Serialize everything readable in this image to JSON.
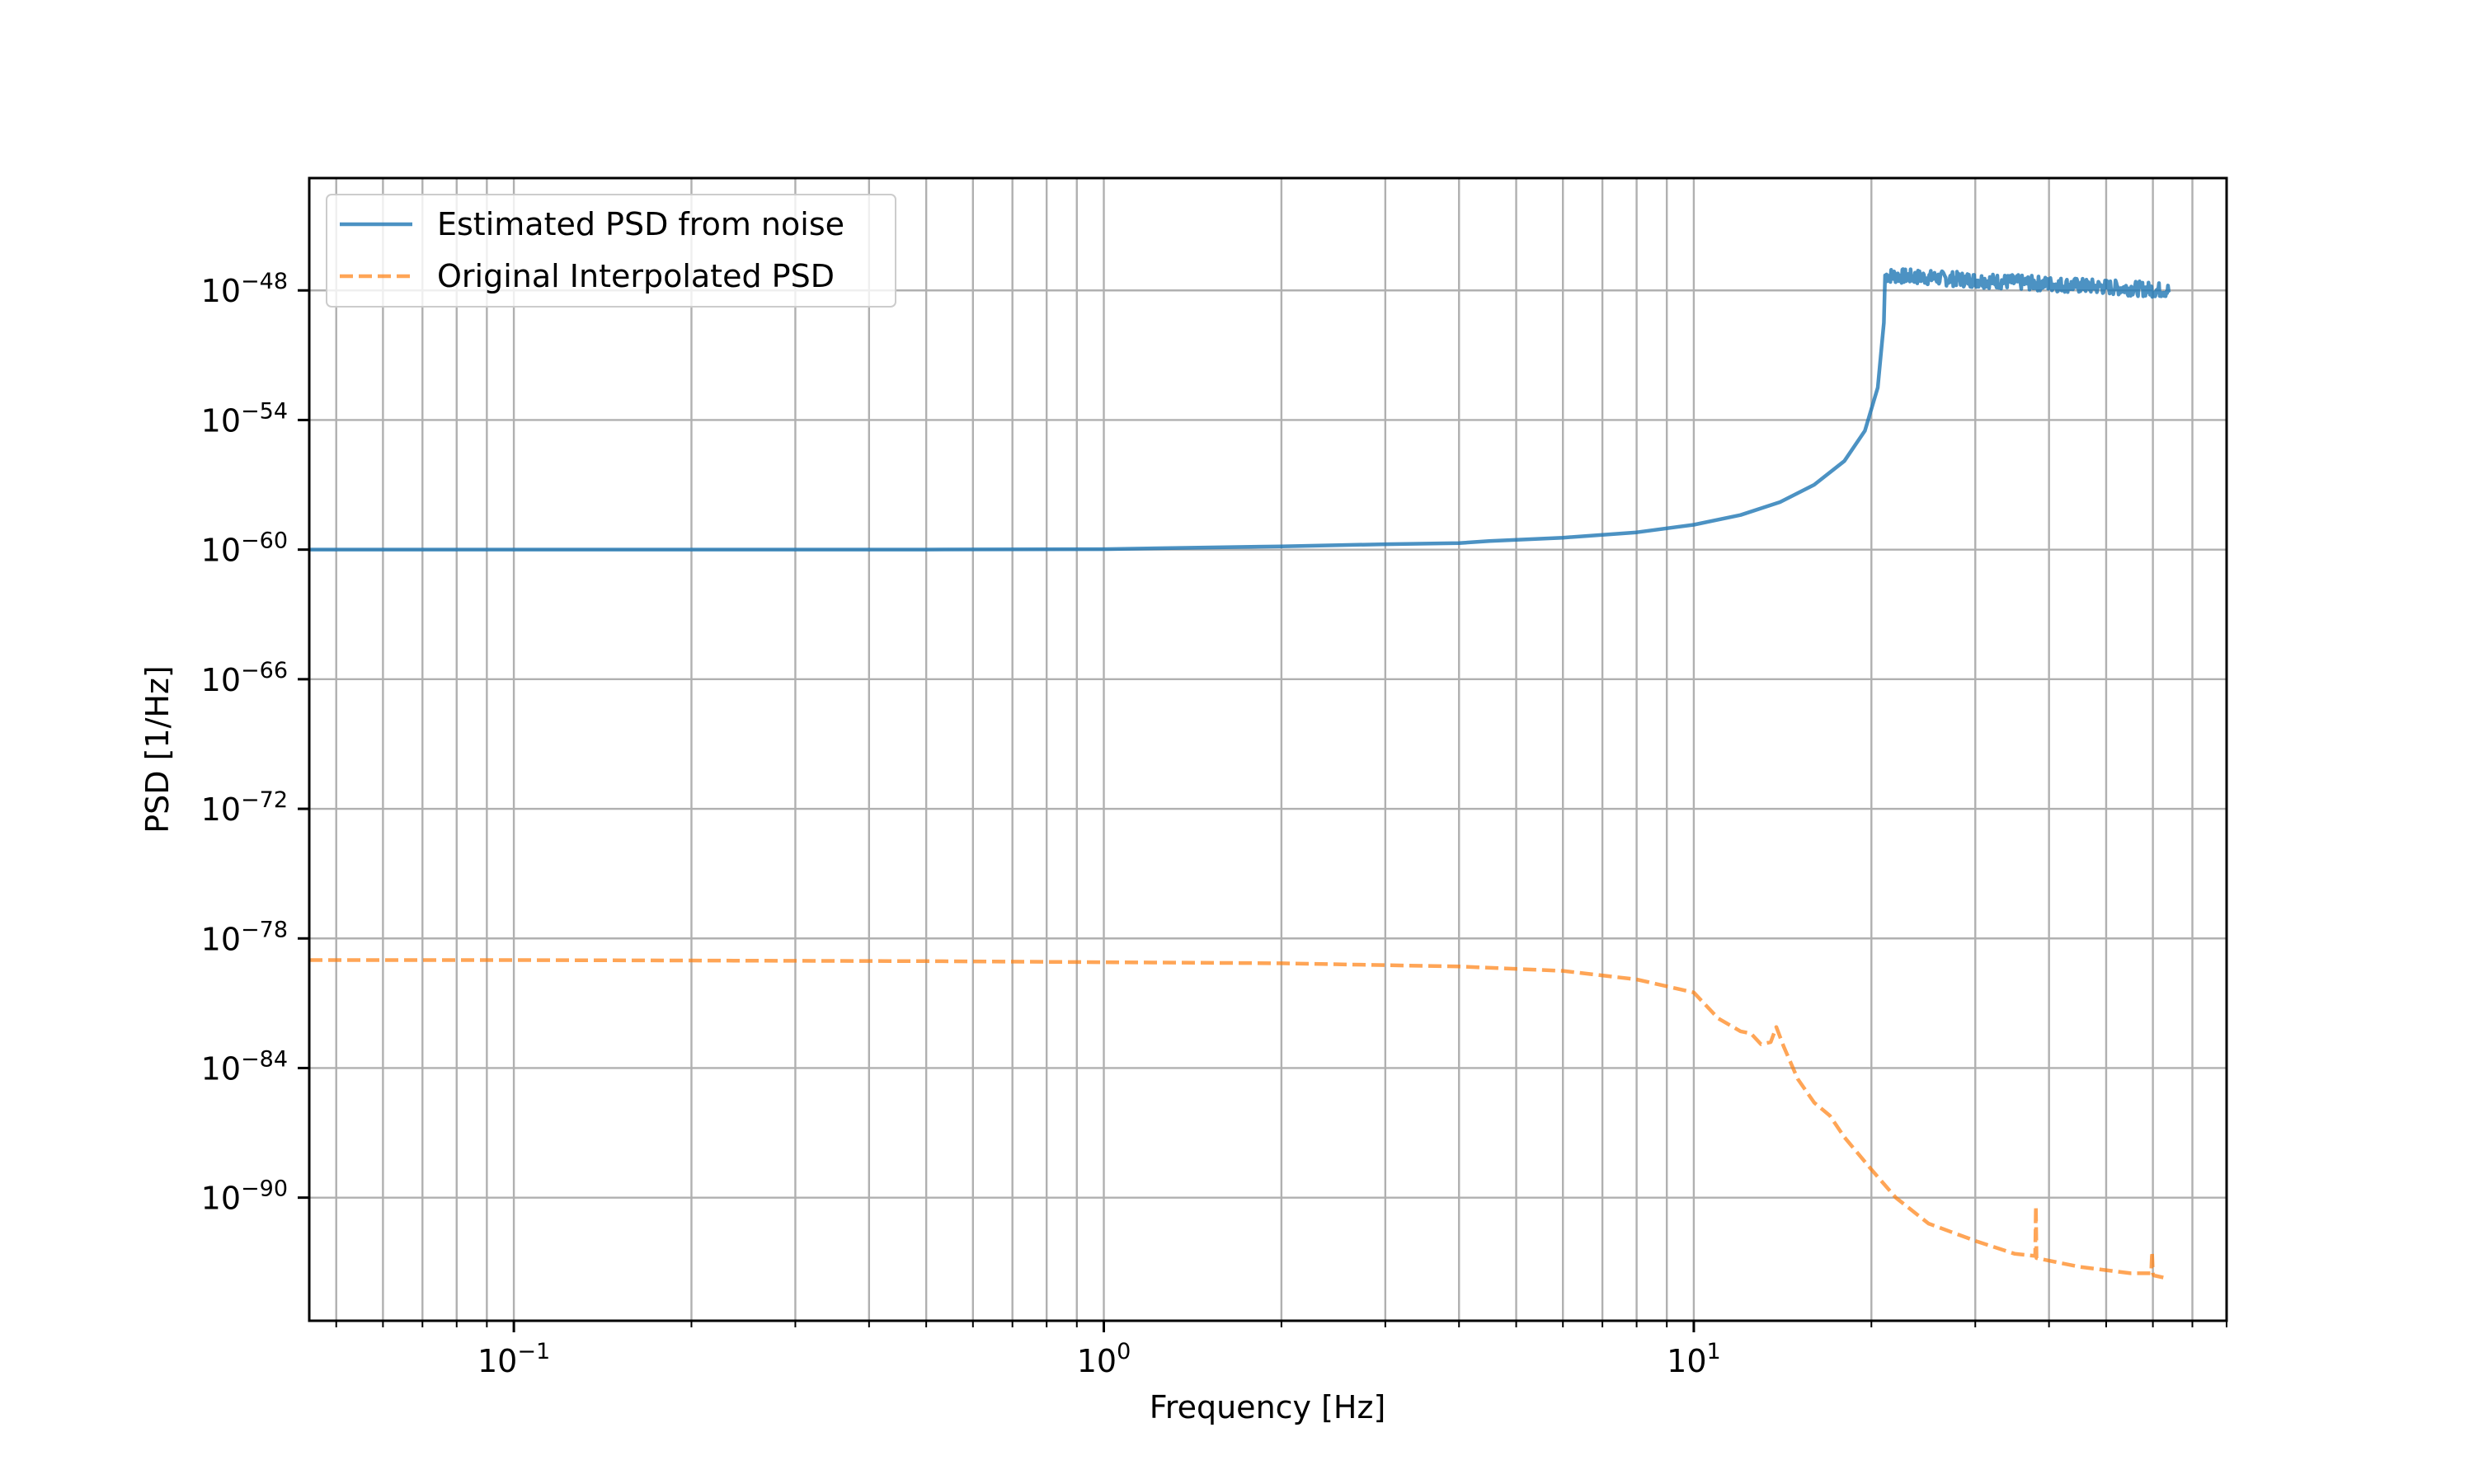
{
  "chart_data": {
    "type": "line",
    "xlabel": "Frequency [Hz]",
    "ylabel": "PSD [1/Hz]",
    "xscale": "log",
    "yscale": "log",
    "xlim": [
      0.045,
      80
    ],
    "ylim_exponent": [
      -95.7,
      -42.8
    ],
    "grid": true,
    "grid_minor_x": true,
    "legend_position": "top-left",
    "x_ticks": [
      {
        "value": 0.1,
        "base": "10",
        "exp": "−1"
      },
      {
        "value": 1,
        "base": "10",
        "exp": "0"
      },
      {
        "value": 10,
        "base": "10",
        "exp": "1"
      }
    ],
    "y_ticks": [
      {
        "exponent": -48,
        "base": "10",
        "exp": "−48"
      },
      {
        "exponent": -54,
        "base": "10",
        "exp": "−54"
      },
      {
        "exponent": -60,
        "base": "10",
        "exp": "−60"
      },
      {
        "exponent": -66,
        "base": "10",
        "exp": "−66"
      },
      {
        "exponent": -72,
        "base": "10",
        "exp": "−72"
      },
      {
        "exponent": -78,
        "base": "10",
        "exp": "−78"
      },
      {
        "exponent": -84,
        "base": "10",
        "exp": "−84"
      },
      {
        "exponent": -90,
        "base": "10",
        "exp": "−90"
      }
    ],
    "series": [
      {
        "name": "Estimated PSD from noise",
        "color": "#1f77b4",
        "style": "solid",
        "note": "y values are log10(PSD)",
        "x": [
          0.045,
          0.1,
          0.5,
          1.0,
          2.0,
          3.0,
          4.0,
          4.5,
          6.0,
          8.0,
          10.0,
          12.0,
          14.0,
          16.0,
          18.0,
          19.5,
          20.5,
          21.0,
          21.1
        ],
        "y": [
          -60.0,
          -60.0,
          -60.0,
          -59.98,
          -59.85,
          -59.75,
          -59.7,
          -59.6,
          -59.45,
          -59.2,
          -58.85,
          -58.4,
          -57.8,
          -57.0,
          -55.9,
          -54.5,
          -52.5,
          -49.5,
          -47.3
        ],
        "noisy_segment": {
          "x_start": 21.1,
          "x_end": 64.0,
          "y_start": -47.3,
          "y_end": -48.0,
          "fluctuation": 0.35
        }
      },
      {
        "name": "Original Interpolated PSD",
        "color": "#ff7f0e",
        "style": "dashed",
        "note": "y values are log10(PSD)",
        "x": [
          0.045,
          0.1,
          0.5,
          1.0,
          2.0,
          4.0,
          6.0,
          8.0,
          10.0,
          11.0,
          12.0,
          12.5,
          13.0,
          13.5,
          13.8,
          14.2,
          15.0,
          16.0,
          17.0,
          18.0,
          20.0,
          22.0,
          25.0,
          30.0,
          35.0,
          37.9,
          38.0,
          38.1,
          45.0,
          55.0,
          59.6,
          59.8,
          60.0,
          60.2,
          62.5
        ],
        "y": [
          -79.0,
          -79.0,
          -79.05,
          -79.1,
          -79.15,
          -79.3,
          -79.5,
          -79.9,
          -80.5,
          -81.7,
          -82.3,
          -82.4,
          -82.9,
          -82.8,
          -82.1,
          -83.0,
          -84.5,
          -85.6,
          -86.2,
          -87.2,
          -88.7,
          -90.0,
          -91.2,
          -92.0,
          -92.6,
          -92.7,
          -90.4,
          -92.8,
          -93.2,
          -93.5,
          -93.5,
          -92.5,
          -93.5,
          -93.6,
          -93.7
        ]
      }
    ]
  }
}
